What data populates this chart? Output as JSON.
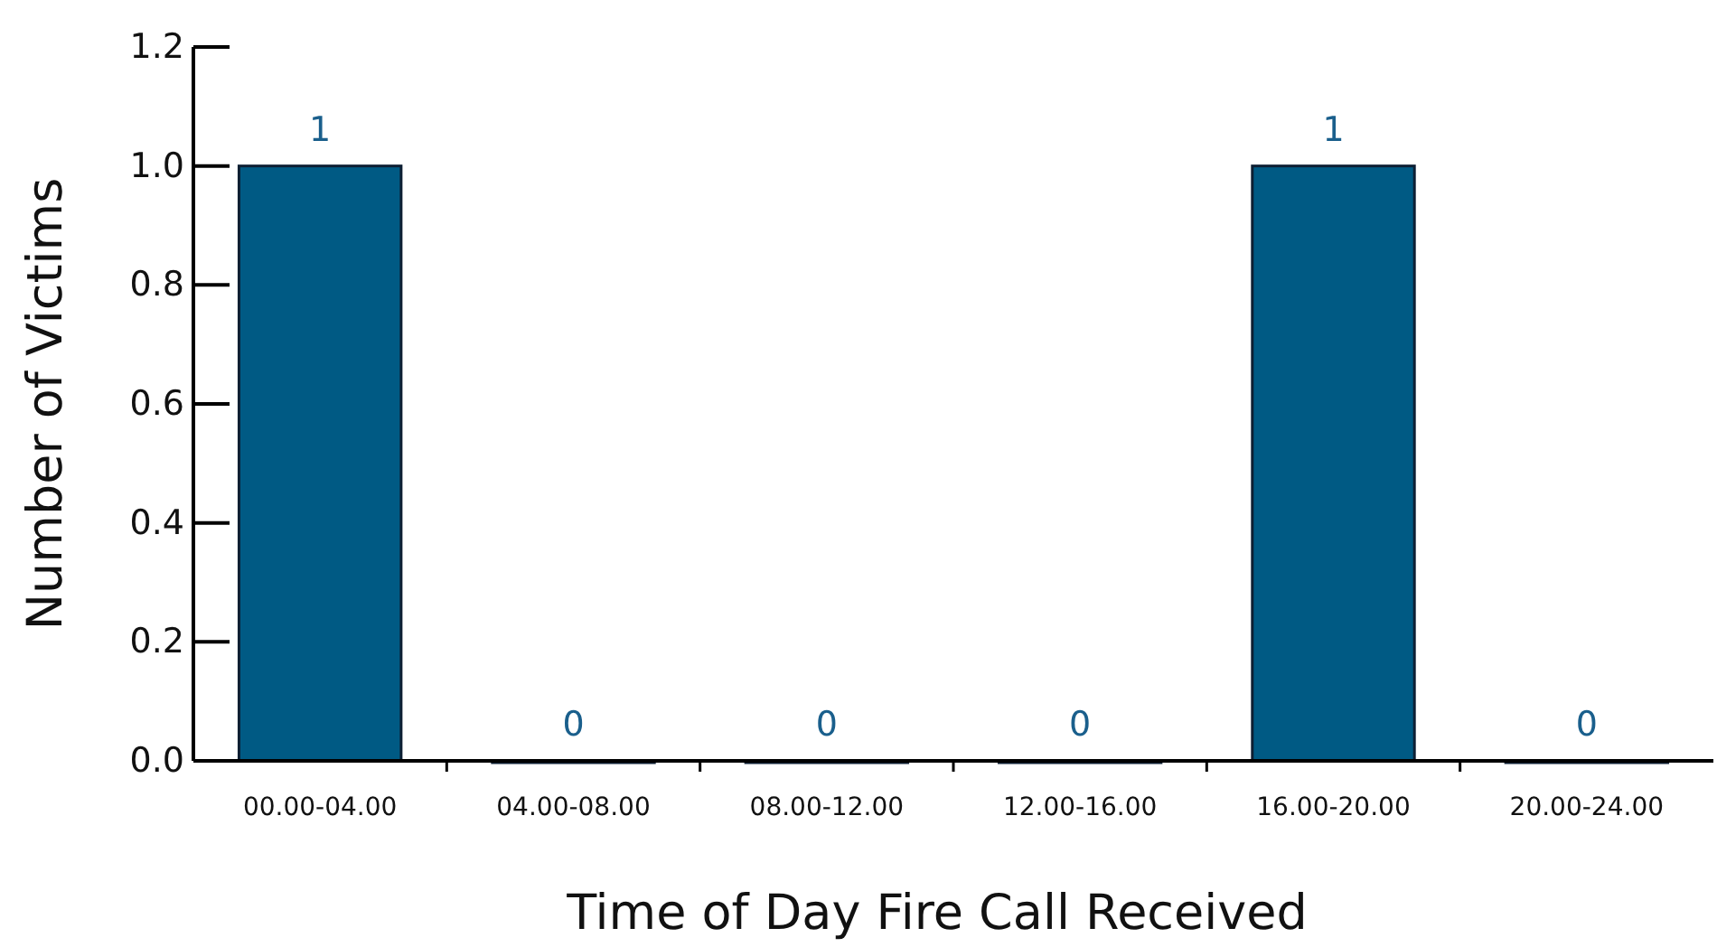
{
  "chart_data": {
    "type": "bar",
    "xlabel": "Time of Day Fire Call Received",
    "ylabel": "Number of Victims",
    "categories": [
      "00.00-04.00",
      "04.00-08.00",
      "08.00-12.00",
      "12.00-16.00",
      "16.00-20.00",
      "20.00-24.00"
    ],
    "values": [
      1,
      0,
      0,
      0,
      1,
      0
    ],
    "color": "#005a84",
    "data_labels": true,
    "ylim": [
      0,
      1.2
    ],
    "yticks": [
      {
        "value": 0,
        "label": "0.0"
      },
      {
        "value": 0.2,
        "label": "0.2"
      },
      {
        "value": 0.4,
        "label": "0.4"
      },
      {
        "value": 0.6,
        "label": "0.6"
      },
      {
        "value": 0.8,
        "label": "0.8"
      },
      {
        "value": 1,
        "label": "1.0"
      },
      {
        "value": 1.2,
        "label": "1.2"
      }
    ],
    "grid": false
  }
}
